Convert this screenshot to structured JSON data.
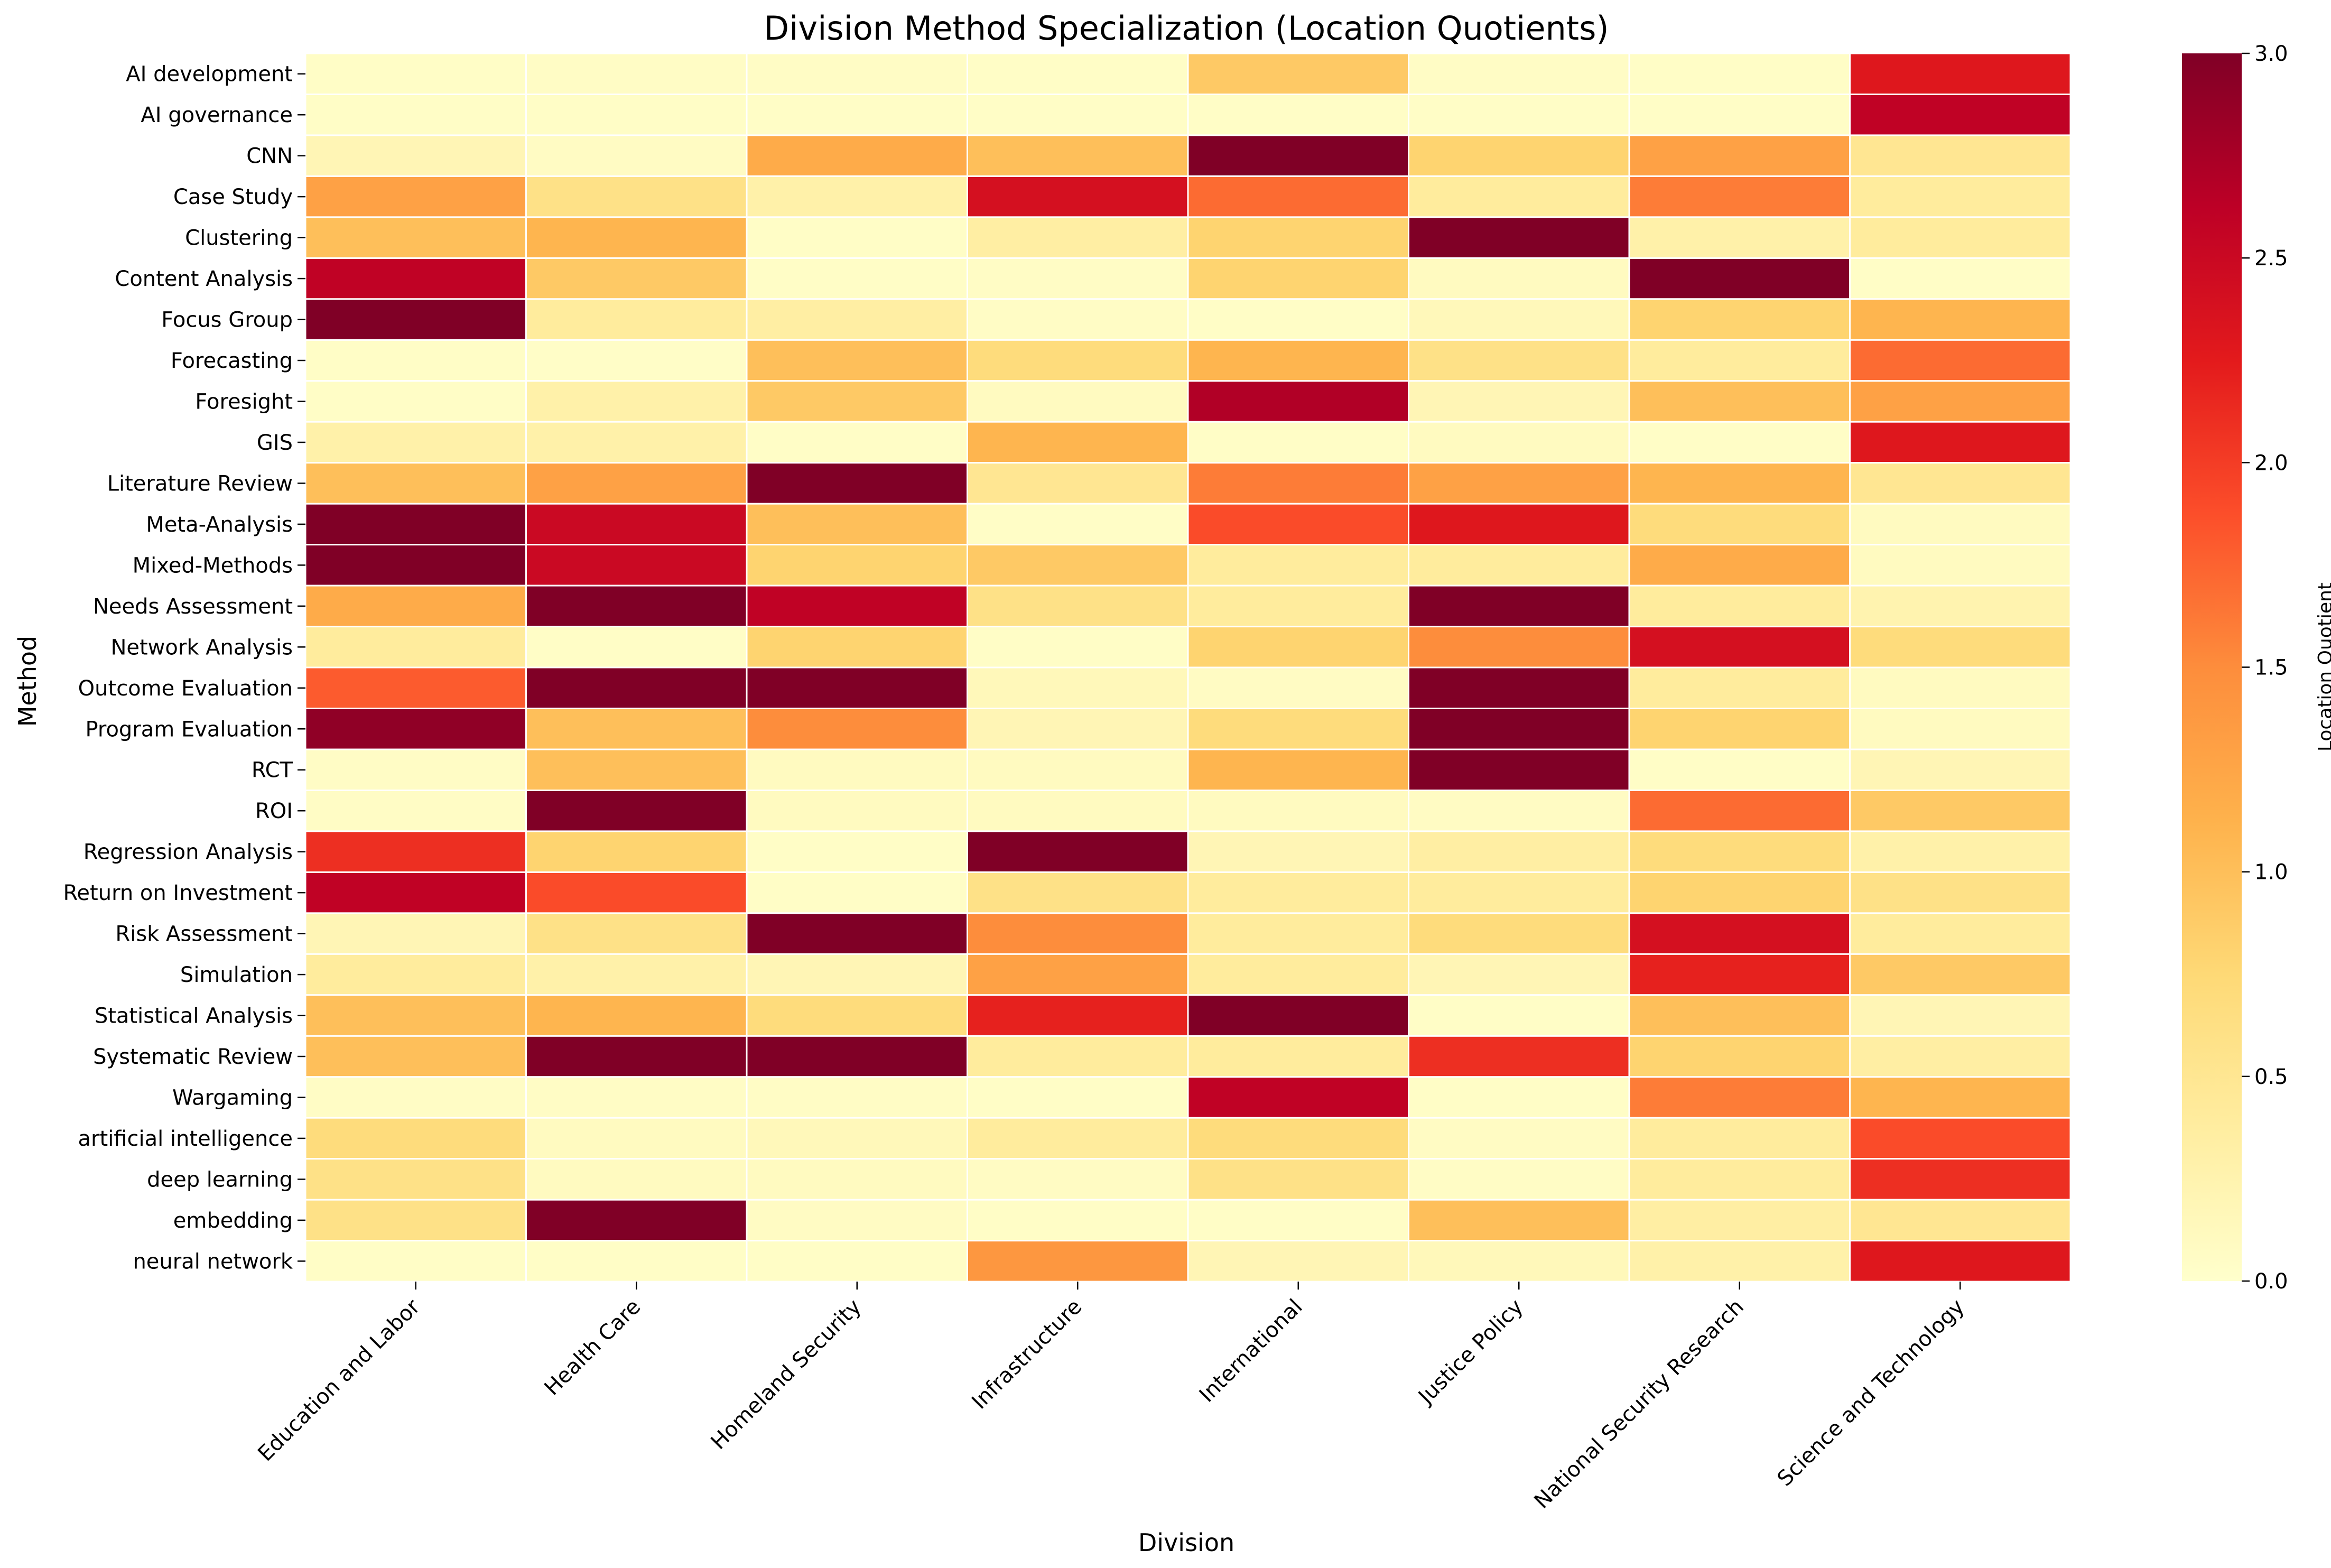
{
  "chart_data": {
    "type": "heatmap",
    "title": "Division Method Specialization (Location Quotients)",
    "xlabel": "Division",
    "ylabel": "Method",
    "colorbar_label": "Location Quotient",
    "colormap": "YlOrRd",
    "colorbar_range": [
      0,
      3
    ],
    "colorbar_ticks": [
      "0.0",
      "0.5",
      "1.0",
      "1.5",
      "2.0",
      "2.5",
      "3.0"
    ],
    "columns": [
      "Education and Labor",
      "Health Care",
      "Homeland Security",
      "Infrastructure",
      "International",
      "Justice Policy",
      "National Security Research",
      "Science and Technology"
    ],
    "rows": [
      "AI development",
      "AI governance",
      "CNN",
      "Case Study",
      "Clustering",
      "Content Analysis",
      "Focus Group",
      "Forecasting",
      "Foresight",
      "GIS",
      "Literature Review",
      "Meta-Analysis",
      "Mixed-Methods",
      "Needs Assessment",
      "Network Analysis",
      "Outcome Evaluation",
      "Program Evaluation",
      "RCT",
      "ROI",
      "Regression Analysis",
      "Return on Investment",
      "Risk Assessment",
      "Simulation",
      "Statistical Analysis",
      "Systematic Review",
      "Wargaming",
      "artificial intelligence",
      "deep learning",
      "embedding",
      "neural network"
    ],
    "values": [
      [
        0.05,
        0.06,
        0.06,
        0.05,
        0.9,
        0.06,
        0.05,
        2.3
      ],
      [
        0.05,
        0.05,
        0.05,
        0.05,
        0.05,
        0.05,
        0.05,
        2.6
      ],
      [
        0.2,
        0.08,
        1.2,
        1.0,
        3.0,
        0.8,
        1.3,
        0.5
      ],
      [
        1.3,
        0.6,
        0.3,
        2.4,
        1.7,
        0.4,
        1.6,
        0.4
      ],
      [
        1.0,
        1.1,
        0.05,
        0.35,
        0.8,
        3.0,
        0.3,
        0.4
      ],
      [
        2.6,
        0.9,
        0.05,
        0.06,
        0.8,
        0.1,
        3.0,
        0.05
      ],
      [
        3.0,
        0.4,
        0.35,
        0.06,
        0.05,
        0.15,
        0.8,
        1.1
      ],
      [
        0.05,
        0.04,
        1.0,
        0.7,
        1.1,
        0.6,
        0.4,
        1.7
      ],
      [
        0.05,
        0.3,
        0.9,
        0.1,
        2.7,
        0.2,
        1.0,
        1.3
      ],
      [
        0.3,
        0.3,
        0.05,
        1.1,
        0.05,
        0.1,
        0.05,
        2.3
      ],
      [
        1.0,
        1.3,
        3.0,
        0.5,
        1.6,
        1.3,
        1.1,
        0.5
      ],
      [
        3.0,
        2.5,
        1.0,
        0.05,
        1.9,
        2.3,
        0.7,
        0.1
      ],
      [
        3.0,
        2.5,
        0.8,
        0.9,
        0.4,
        0.4,
        1.2,
        0.1
      ],
      [
        1.2,
        3.0,
        2.6,
        0.6,
        0.4,
        3.0,
        0.4,
        0.25
      ],
      [
        0.4,
        0.05,
        0.8,
        0.05,
        0.8,
        1.5,
        2.4,
        0.7
      ],
      [
        1.8,
        3.0,
        3.0,
        0.15,
        0.08,
        3.0,
        0.4,
        0.1
      ],
      [
        2.9,
        1.0,
        1.5,
        0.2,
        0.7,
        3.0,
        0.8,
        0.1
      ],
      [
        0.06,
        1.0,
        0.1,
        0.1,
        1.1,
        3.0,
        0.05,
        0.2
      ],
      [
        0.06,
        3.0,
        0.1,
        0.1,
        0.1,
        0.08,
        1.7,
        0.9
      ],
      [
        2.1,
        0.8,
        0.05,
        3.0,
        0.2,
        0.35,
        0.7,
        0.3
      ],
      [
        2.6,
        1.9,
        0.05,
        0.6,
        0.4,
        0.4,
        0.8,
        0.6
      ],
      [
        0.2,
        0.6,
        3.0,
        1.5,
        0.4,
        0.7,
        2.4,
        0.4
      ],
      [
        0.4,
        0.3,
        0.2,
        1.3,
        0.4,
        0.2,
        2.2,
        0.9
      ],
      [
        1.0,
        1.1,
        0.7,
        2.2,
        3.0,
        0.05,
        1.0,
        0.2
      ],
      [
        1.0,
        3.0,
        3.0,
        0.4,
        0.4,
        2.1,
        0.8,
        0.35
      ],
      [
        0.06,
        0.06,
        0.06,
        0.05,
        2.6,
        0.05,
        1.6,
        1.1
      ],
      [
        0.7,
        0.1,
        0.15,
        0.4,
        0.7,
        0.08,
        0.4,
        1.9
      ],
      [
        0.6,
        0.1,
        0.1,
        0.08,
        0.6,
        0.06,
        0.4,
        2.1
      ],
      [
        0.6,
        3.0,
        0.08,
        0.05,
        0.05,
        1.0,
        0.35,
        0.5
      ],
      [
        0.05,
        0.05,
        0.05,
        1.4,
        0.2,
        0.15,
        0.3,
        2.3
      ]
    ]
  }
}
